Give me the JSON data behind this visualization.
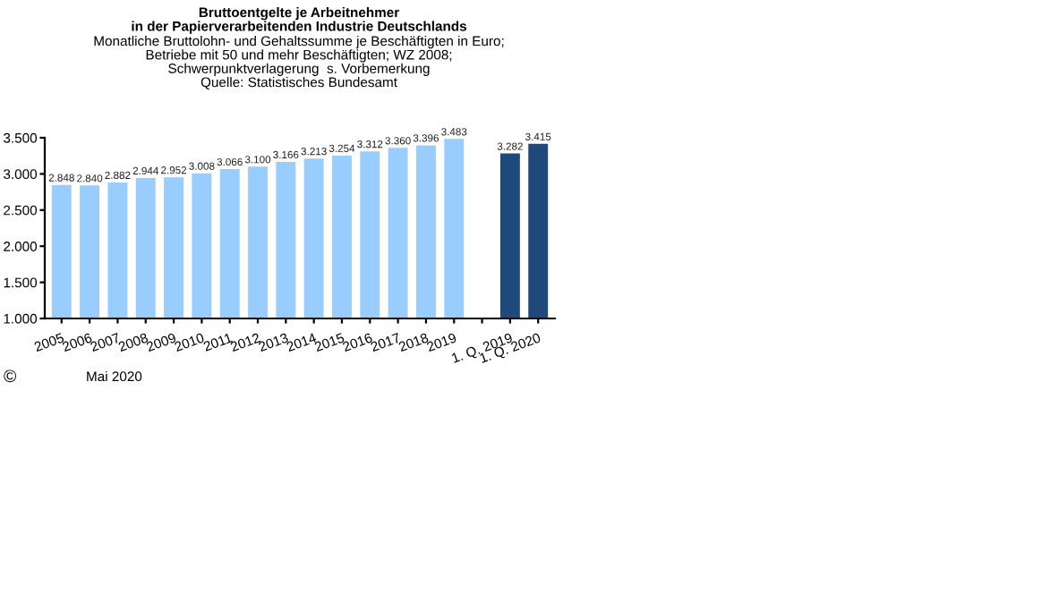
{
  "chart_data": {
    "type": "bar",
    "title": "Bruttoentgelte je Arbeitnehmer\nin der Papierverarbeitenden Industrie Deutschlands",
    "subtitle": "Monatliche Bruttolohn- und Gehaltssumme je Beschäftigten in Euro;\nBetriebe mit 50 und mehr Beschäftigten; WZ 2008;\nSchwerpunktverlagerung  s. Vorbemerkung\nQuelle: Statistisches Bundesamt",
    "categories": [
      "2005",
      "2006",
      "2007",
      "2008",
      "2009",
      "2010",
      "2011",
      "2012",
      "2013",
      "2014",
      "2015",
      "2016",
      "2017",
      "2018",
      "2019",
      null,
      "1. Q. 2019",
      "1. Q. 2020"
    ],
    "values": [
      2848,
      2840,
      2882,
      2944,
      2952,
      3008,
      3066,
      3100,
      3166,
      3213,
      3254,
      3312,
      3360,
      3396,
      3483,
      null,
      3282,
      3415
    ],
    "value_labels": [
      "2.848",
      "2.840",
      "2.882",
      "2.944",
      "2.952",
      "3.008",
      "3.066",
      "3.100",
      "3.166",
      "3.213",
      "3.254",
      "3.312",
      "3.360",
      "3.396",
      "3.483",
      null,
      "3.282",
      "3.415"
    ],
    "colors": [
      "#99ccff",
      "#99ccff",
      "#99ccff",
      "#99ccff",
      "#99ccff",
      "#99ccff",
      "#99ccff",
      "#99ccff",
      "#99ccff",
      "#99ccff",
      "#99ccff",
      "#99ccff",
      "#99ccff",
      "#99ccff",
      "#99ccff",
      "#99ccff",
      "#1f497d",
      "#1f497d"
    ],
    "ylim": [
      1000,
      3500
    ],
    "yticks": [
      {
        "value": 1000,
        "label": "1.000"
      },
      {
        "value": 1500,
        "label": "1.500"
      },
      {
        "value": 2000,
        "label": "2.000"
      },
      {
        "value": 2500,
        "label": "2.500"
      },
      {
        "value": 3000,
        "label": "3.000"
      },
      {
        "value": 3500,
        "label": "3.500"
      }
    ],
    "grid": false,
    "legend": false,
    "annotations": [
      "©",
      "Mai 2020"
    ]
  }
}
